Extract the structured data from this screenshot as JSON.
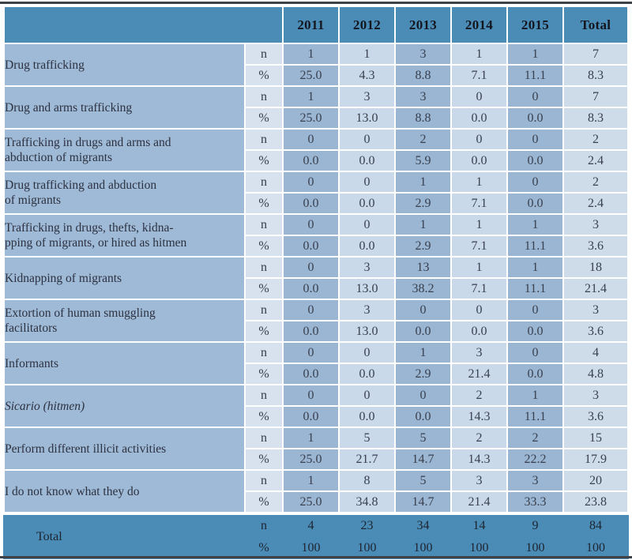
{
  "table": {
    "header": {
      "corner": "",
      "columns": [
        "2011",
        "2012",
        "2013",
        "2014",
        "2015",
        "Total"
      ]
    },
    "sub_labels": {
      "n": "n",
      "pct": "%"
    },
    "rows": [
      {
        "label": "Drug trafficking",
        "italic": false,
        "n": [
          "1",
          "1",
          "3",
          "1",
          "1",
          "7"
        ],
        "pct": [
          "25.0",
          "4.3",
          "8.8",
          "7.1",
          "11.1",
          "8.3"
        ]
      },
      {
        "label": "Drug and arms trafficking",
        "italic": false,
        "n": [
          "1",
          "3",
          "3",
          "0",
          "0",
          "7"
        ],
        "pct": [
          "25.0",
          "13.0",
          "8.8",
          "0.0",
          "0.0",
          "8.3"
        ]
      },
      {
        "label": "Trafficking in drugs and arms and\nabduction of migrants",
        "italic": false,
        "n": [
          "0",
          "0",
          "2",
          "0",
          "0",
          "2"
        ],
        "pct": [
          "0.0",
          "0.0",
          "5.9",
          "0.0",
          "0.0",
          "2.4"
        ]
      },
      {
        "label": "Drug trafficking and abduction\nof migrants",
        "italic": false,
        "n": [
          "0",
          "0",
          "1",
          "1",
          "0",
          "2"
        ],
        "pct": [
          "0.0",
          "0.0",
          "2.9",
          "7.1",
          "0.0",
          "2.4"
        ]
      },
      {
        "label": "Trafficking in drugs, thefts, kidna-\npping of migrants, or hired as hitmen",
        "italic": false,
        "n": [
          "0",
          "0",
          "1",
          "1",
          "1",
          "3"
        ],
        "pct": [
          "0.0",
          "0.0",
          "2.9",
          "7.1",
          "11.1",
          "3.6"
        ]
      },
      {
        "label": "Kidnapping of migrants",
        "italic": false,
        "n": [
          "0",
          "3",
          "13",
          "1",
          "1",
          "18"
        ],
        "pct": [
          "0.0",
          "13.0",
          "38.2",
          "7.1",
          "11.1",
          "21.4"
        ]
      },
      {
        "label": "Extortion of human smuggling\nfacilitators",
        "italic": false,
        "n": [
          "0",
          "3",
          "0",
          "0",
          "0",
          "3"
        ],
        "pct": [
          "0.0",
          "13.0",
          "0.0",
          "0.0",
          "0.0",
          "3.6"
        ]
      },
      {
        "label": "Informants",
        "italic": false,
        "n": [
          "0",
          "0",
          "1",
          "3",
          "0",
          "4"
        ],
        "pct": [
          "0.0",
          "0.0",
          "2.9",
          "21.4",
          "0.0",
          "4.8"
        ]
      },
      {
        "label": "Sicario (hitmen)",
        "italic": true,
        "n": [
          "0",
          "0",
          "0",
          "2",
          "1",
          "3"
        ],
        "pct": [
          "0.0",
          "0.0",
          "0.0",
          "14.3",
          "11.1",
          "3.6"
        ]
      },
      {
        "label": "Perform different illicit activities",
        "italic": false,
        "n": [
          "1",
          "5",
          "5",
          "2",
          "2",
          "15"
        ],
        "pct": [
          "25.0",
          "21.7",
          "14.7",
          "14.3",
          "22.2",
          "17.9"
        ]
      },
      {
        "label": "I do not know what they do",
        "italic": false,
        "n": [
          "1",
          "8",
          "5",
          "3",
          "3",
          "20"
        ],
        "pct": [
          "25.0",
          "34.8",
          "14.7",
          "21.4",
          "33.3",
          "23.8"
        ]
      }
    ],
    "total_row": {
      "label": "Total",
      "n": [
        "4",
        "23",
        "34",
        "14",
        "9",
        "84"
      ],
      "pct": [
        "100",
        "100",
        "100",
        "100",
        "100",
        "100"
      ]
    }
  },
  "colors": {
    "header_bg": "#4a8cb6",
    "label_column_bg": "#9fbad6",
    "sub_column_bg": "#d8e2ef",
    "dark_column_bg": "#9bb6d3",
    "light_column_bg": "#c9d9e9",
    "total_column_bg": "#cedce9",
    "total_band_bg": "#4a8cb6",
    "frame_border": "#3f4347",
    "separator": "#ffffff",
    "header_text": "#14161f",
    "body_text": "#39404e"
  }
}
